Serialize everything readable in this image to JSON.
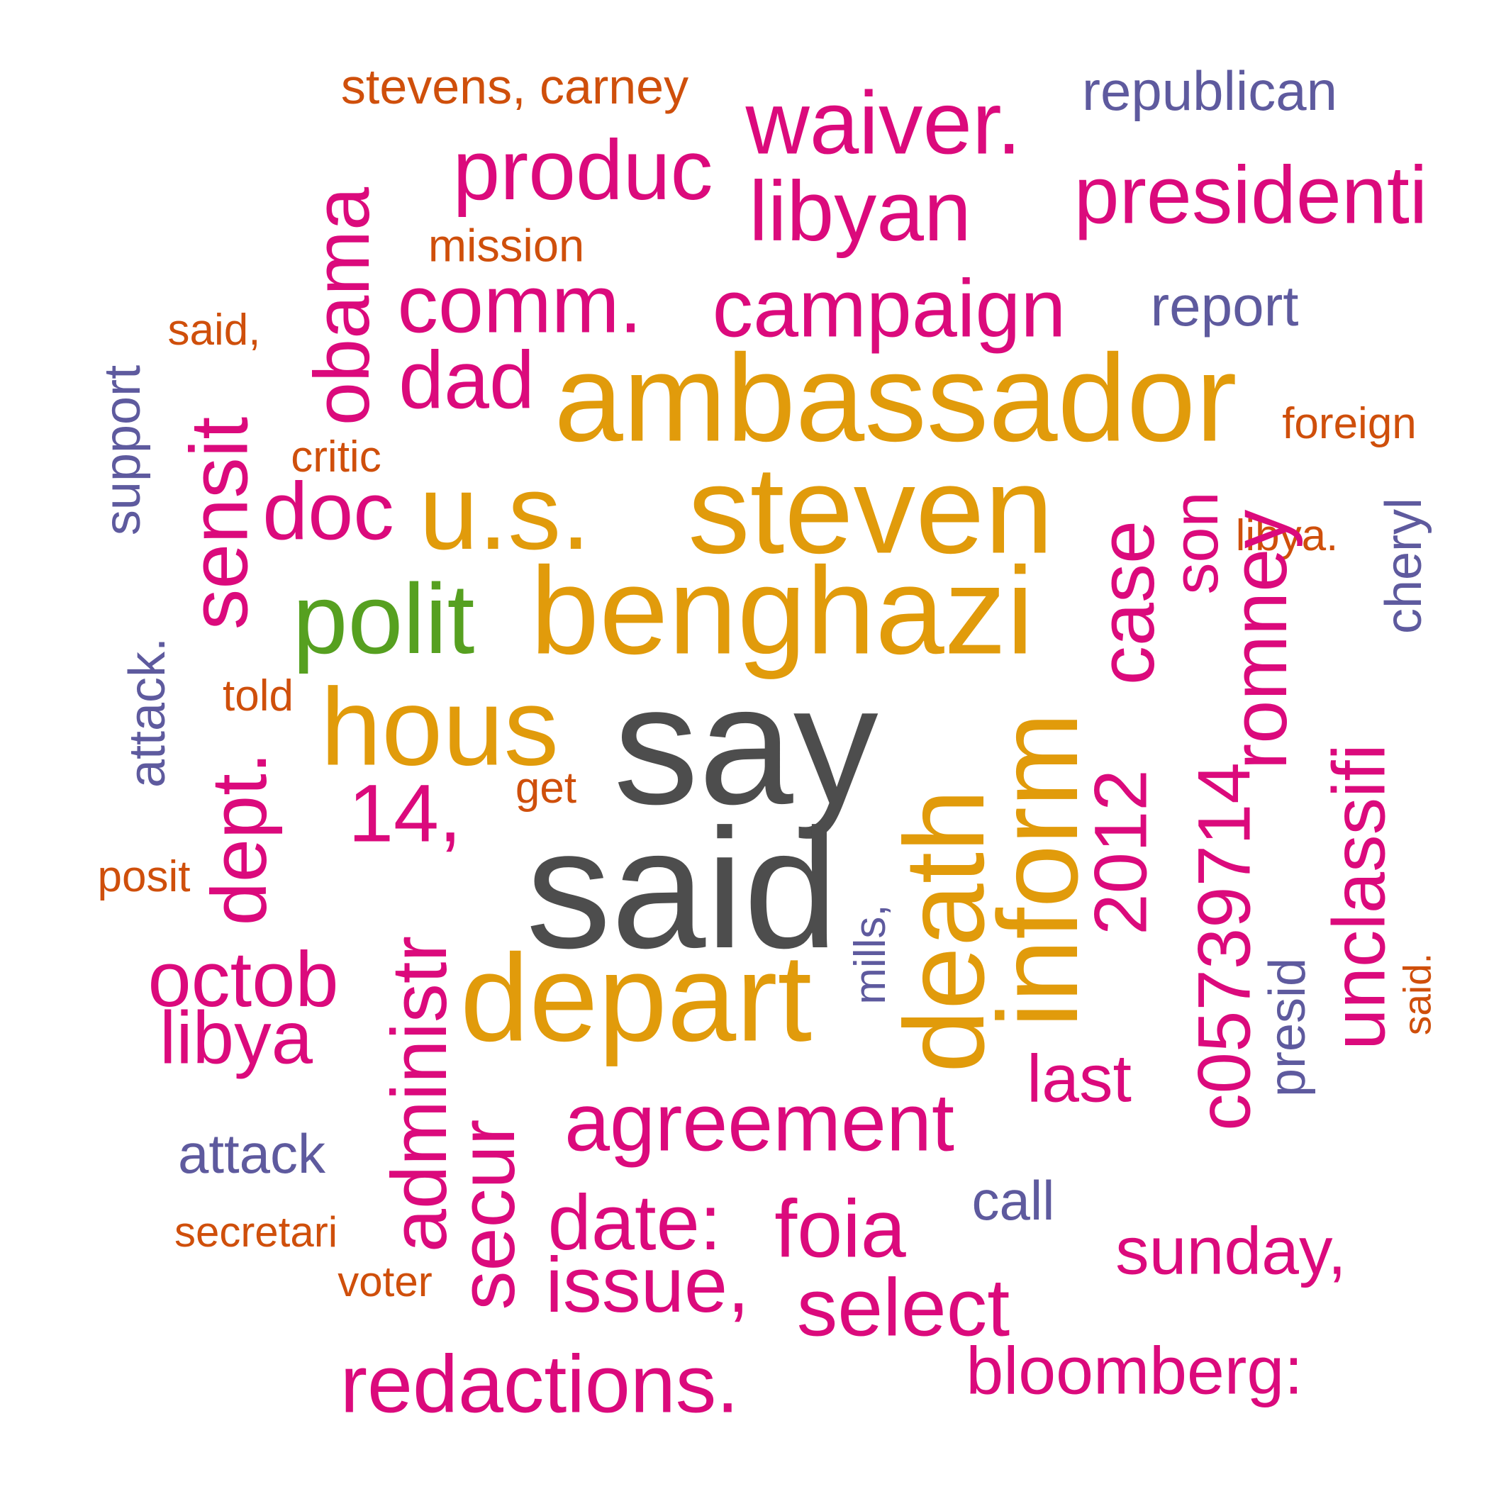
{
  "colors": {
    "gray": "#4d4d4d",
    "gold": "#e19b0b",
    "magenta": "#db0a7c",
    "orange": "#cf4f0b",
    "purple": "#5e5a9e",
    "green": "#56a020"
  },
  "words": [
    {
      "text": "say",
      "color": "gray"
    },
    {
      "text": "said",
      "color": "gray"
    },
    {
      "text": "ambassador",
      "color": "gold"
    },
    {
      "text": "steven",
      "color": "gold"
    },
    {
      "text": "benghazi",
      "color": "gold"
    },
    {
      "text": "u.s.",
      "color": "gold"
    },
    {
      "text": "hous",
      "color": "gold"
    },
    {
      "text": "depart",
      "color": "gold"
    },
    {
      "text": "death",
      "color": "gold"
    },
    {
      "text": "inform",
      "color": "gold"
    },
    {
      "text": "polit",
      "color": "green"
    },
    {
      "text": "stevens, carney",
      "color": "orange"
    },
    {
      "text": "waiver.",
      "color": "magenta"
    },
    {
      "text": "republican",
      "color": "purple"
    },
    {
      "text": "produc",
      "color": "magenta"
    },
    {
      "text": "libyan",
      "color": "magenta"
    },
    {
      "text": "presidenti",
      "color": "magenta"
    },
    {
      "text": "mission",
      "color": "orange"
    },
    {
      "text": "obama",
      "color": "magenta"
    },
    {
      "text": "comm.",
      "color": "magenta"
    },
    {
      "text": "campaign",
      "color": "magenta"
    },
    {
      "text": "report",
      "color": "purple"
    },
    {
      "text": "said,",
      "color": "orange"
    },
    {
      "text": "support",
      "color": "purple"
    },
    {
      "text": "dad",
      "color": "magenta"
    },
    {
      "text": "foreign",
      "color": "orange"
    },
    {
      "text": "sensit",
      "color": "magenta"
    },
    {
      "text": "critic",
      "color": "orange"
    },
    {
      "text": "doc",
      "color": "magenta"
    },
    {
      "text": "case",
      "color": "magenta"
    },
    {
      "text": "son",
      "color": "magenta"
    },
    {
      "text": "libya.",
      "color": "orange"
    },
    {
      "text": "cheryl",
      "color": "purple"
    },
    {
      "text": "romney",
      "color": "magenta"
    },
    {
      "text": "attack.",
      "color": "purple"
    },
    {
      "text": "told",
      "color": "orange"
    },
    {
      "text": "dept.",
      "color": "magenta"
    },
    {
      "text": "14,",
      "color": "magenta"
    },
    {
      "text": "get",
      "color": "orange"
    },
    {
      "text": "2012",
      "color": "magenta"
    },
    {
      "text": "c05739714",
      "color": "magenta"
    },
    {
      "text": "unclassifi",
      "color": "magenta"
    },
    {
      "text": "posit",
      "color": "orange"
    },
    {
      "text": "administr",
      "color": "magenta"
    },
    {
      "text": "mills,",
      "color": "purple"
    },
    {
      "text": "presid",
      "color": "purple"
    },
    {
      "text": "said.",
      "color": "orange"
    },
    {
      "text": "octob",
      "color": "magenta"
    },
    {
      "text": "libya",
      "color": "magenta"
    },
    {
      "text": "last",
      "color": "magenta"
    },
    {
      "text": "agreement",
      "color": "magenta"
    },
    {
      "text": "secur",
      "color": "magenta"
    },
    {
      "text": "attack",
      "color": "purple"
    },
    {
      "text": "call",
      "color": "purple"
    },
    {
      "text": "date:",
      "color": "magenta"
    },
    {
      "text": "foia",
      "color": "magenta"
    },
    {
      "text": "secretari",
      "color": "orange"
    },
    {
      "text": "sunday,",
      "color": "magenta"
    },
    {
      "text": "voter",
      "color": "orange"
    },
    {
      "text": "issue,",
      "color": "magenta"
    },
    {
      "text": "select",
      "color": "magenta"
    },
    {
      "text": "bloomberg:",
      "color": "magenta"
    },
    {
      "text": "redactions.",
      "color": "magenta"
    }
  ]
}
